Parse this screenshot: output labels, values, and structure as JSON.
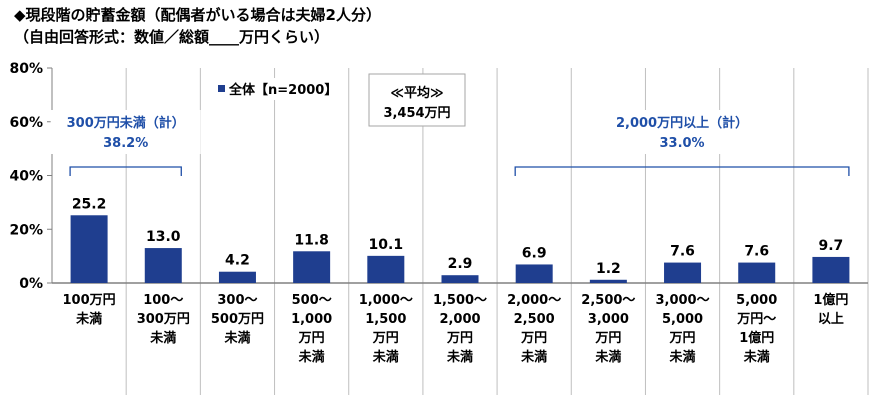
{
  "title_line1": "◆現段階の貯蓄金額（配偶者がいる場合は夫婦2人分）",
  "title_line2": "（自由回答形式：数値／総額____万円くらい）",
  "colors": {
    "bar": "#1f3e8f",
    "annotation": "#1f4fa8",
    "grid": "#bfbfbf",
    "axis": "#808080"
  },
  "chart_data": {
    "type": "bar",
    "categories": [
      "100万円\n未満",
      "100～\n300万円\n未満",
      "300～\n500万円\n未満",
      "500～\n1,000\n万円\n未満",
      "1,000～\n1,500\n万円\n未満",
      "1,500～\n2,000\n万円\n未満",
      "2,000～\n2,500\n万円\n未満",
      "2,500～\n3,000\n万円\n未満",
      "3,000～\n5,000\n万円\n未満",
      "5,000\n万円～\n1億円\n未満",
      "1億円\n以上"
    ],
    "series": [
      {
        "name": "全体【n=2000】",
        "values": [
          25.2,
          13.0,
          4.2,
          11.8,
          10.1,
          2.9,
          6.9,
          1.2,
          7.6,
          7.6,
          9.7
        ]
      }
    ],
    "value_labels": [
      "25.2",
      "13.0",
      "4.2",
      "11.8",
      "10.1",
      "2.9",
      "6.9",
      "1.2",
      "7.6",
      "7.6",
      "9.7"
    ],
    "ylim": [
      0,
      80
    ],
    "yticks": [
      "0%",
      "20%",
      "40%",
      "60%",
      "80%"
    ],
    "legend": {
      "label": "全体【n=2000】",
      "position": "top-left"
    },
    "average_box": {
      "heading": "≪平均≫",
      "value": "3,454万円"
    },
    "annotations": [
      {
        "label": "300万円未満（計）",
        "value": "38.2%",
        "from_category": 0,
        "to_category": 1
      },
      {
        "label": "2,000万円以上（計）",
        "value": "33.0%",
        "from_category": 6,
        "to_category": 10
      }
    ]
  }
}
